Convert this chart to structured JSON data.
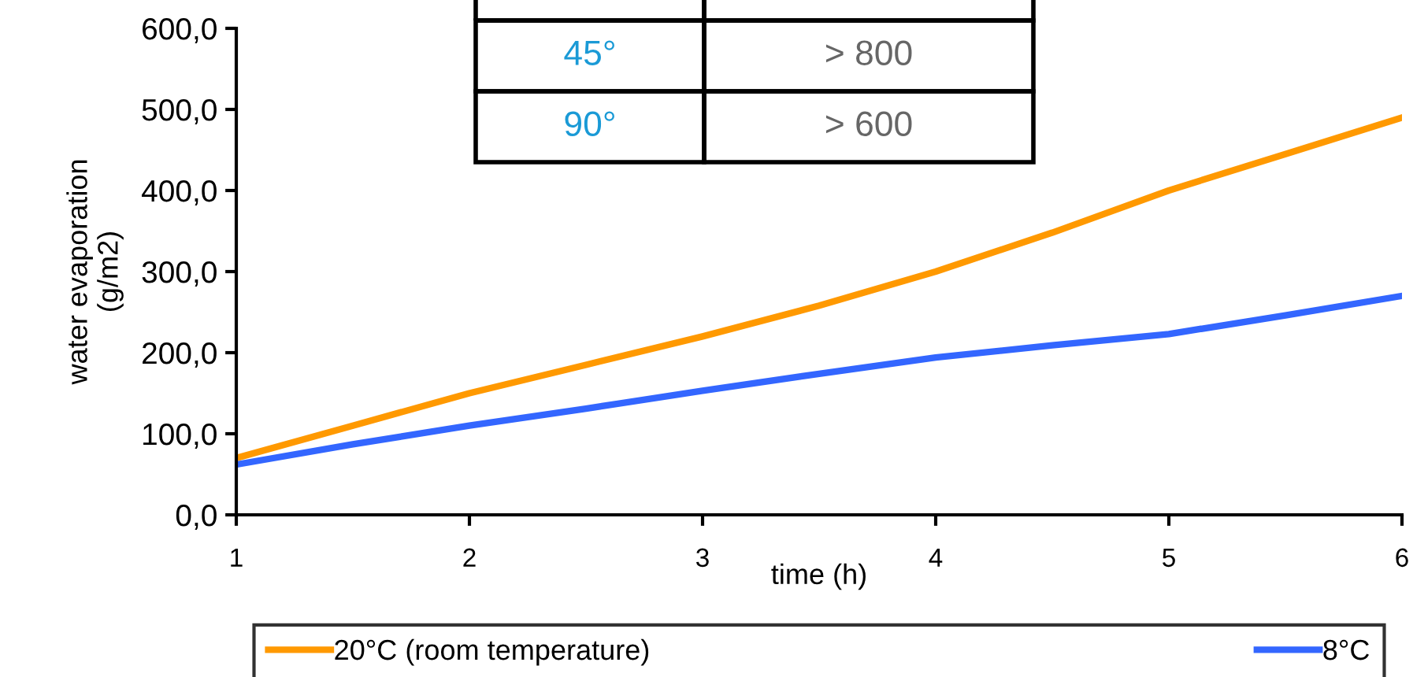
{
  "chart_data": {
    "type": "line",
    "xlabel": "time (h)",
    "ylabel": "water evaporation\n(g/m2)",
    "x": [
      1,
      1.5,
      2,
      2.5,
      3,
      3.5,
      4,
      4.5,
      5,
      5.5,
      6
    ],
    "series": [
      {
        "name": "20°C (room temperature)",
        "color": "#ff9900",
        "values": [
          70,
          110,
          150,
          185,
          220,
          258,
          300,
          348,
          400,
          445,
          490
        ]
      },
      {
        "name": "8°C",
        "color": "#3366ff",
        "values": [
          62,
          87,
          110,
          131,
          153,
          174,
          194,
          209,
          223,
          246,
          270
        ]
      }
    ],
    "xlim": [
      1,
      6
    ],
    "xticks": [
      1,
      2,
      3,
      4,
      5,
      6
    ],
    "ylim": [
      0,
      600
    ],
    "yticks": [
      {
        "value": 0,
        "label": "0,0"
      },
      {
        "value": 100,
        "label": "100,0"
      },
      {
        "value": 200,
        "label": "200,0"
      },
      {
        "value": 300,
        "label": "300,0"
      },
      {
        "value": 400,
        "label": "400,0"
      },
      {
        "value": 500,
        "label": "500,0"
      },
      {
        "value": 600,
        "label": "600,0"
      }
    ],
    "grid": false,
    "legend": "bottom",
    "marker": "none",
    "line_style": "solid",
    "annotations": [
      "45°",
      "> 800",
      "90°",
      "> 600"
    ]
  }
}
